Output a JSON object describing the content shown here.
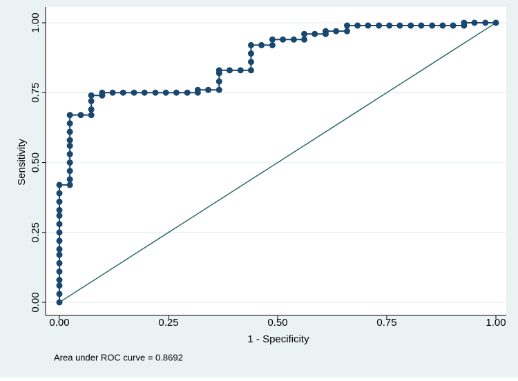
{
  "chart_data": {
    "type": "line",
    "xlabel": "1 - Specificity",
    "ylabel": "Sensitivity",
    "annotation": "Area under ROC curve = 0.8692",
    "xlim": [
      0,
      1
    ],
    "ylim": [
      0,
      1
    ],
    "xticks": [
      {
        "value": 0,
        "label": "0.00"
      },
      {
        "value": 0.25,
        "label": "0.25"
      },
      {
        "value": 0.5,
        "label": "0.50"
      },
      {
        "value": 0.75,
        "label": "0.75"
      },
      {
        "value": 1,
        "label": "1.00"
      }
    ],
    "yticks": [
      {
        "value": 0,
        "label": "0.00"
      },
      {
        "value": 0.25,
        "label": "0.25"
      },
      {
        "value": 0.5,
        "label": "0.50"
      },
      {
        "value": 0.75,
        "label": "0.75"
      },
      {
        "value": 1,
        "label": "1.00"
      }
    ],
    "grid": true,
    "series": [
      {
        "color": "#1a476f",
        "markers": true,
        "x": [
          0,
          0,
          0,
          0,
          0,
          0,
          0,
          0,
          0,
          0,
          0,
          0,
          0,
          0,
          0,
          0,
          0.024,
          0.024,
          0.024,
          0.024,
          0.024,
          0.024,
          0.024,
          0.024,
          0.024,
          0.024,
          0.049,
          0.073,
          0.073,
          0.073,
          0.073,
          0.098,
          0.098,
          0.122,
          0.146,
          0.171,
          0.195,
          0.22,
          0.244,
          0.268,
          0.293,
          0.317,
          0.317,
          0.341,
          0.366,
          0.366,
          0.366,
          0.366,
          0.39,
          0.415,
          0.439,
          0.439,
          0.439,
          0.439,
          0.463,
          0.488,
          0.488,
          0.512,
          0.537,
          0.561,
          0.561,
          0.585,
          0.61,
          0.61,
          0.634,
          0.659,
          0.659,
          0.683,
          0.707,
          0.732,
          0.756,
          0.78,
          0.805,
          0.829,
          0.854,
          0.878,
          0.902,
          0.927,
          0.927,
          0.951,
          0.976,
          1
        ],
        "values": [
          0,
          0.03,
          0.06,
          0.08,
          0.11,
          0.14,
          0.17,
          0.19,
          0.22,
          0.25,
          0.28,
          0.31,
          0.33,
          0.36,
          0.39,
          0.42,
          0.42,
          0.44,
          0.47,
          0.5,
          0.53,
          0.56,
          0.58,
          0.61,
          0.64,
          0.67,
          0.67,
          0.67,
          0.69,
          0.72,
          0.74,
          0.74,
          0.75,
          0.75,
          0.75,
          0.75,
          0.75,
          0.75,
          0.75,
          0.75,
          0.75,
          0.75,
          0.76,
          0.76,
          0.76,
          0.79,
          0.82,
          0.83,
          0.83,
          0.83,
          0.83,
          0.86,
          0.89,
          0.92,
          0.92,
          0.92,
          0.94,
          0.94,
          0.94,
          0.94,
          0.96,
          0.96,
          0.96,
          0.97,
          0.97,
          0.97,
          0.99,
          0.99,
          0.99,
          0.99,
          0.99,
          0.99,
          0.99,
          0.99,
          0.99,
          0.99,
          0.99,
          0.99,
          1,
          1,
          1,
          1
        ]
      },
      {
        "color": "#2d6d66",
        "markers": false,
        "x": [
          0,
          1
        ],
        "values": [
          0,
          1
        ]
      }
    ]
  }
}
